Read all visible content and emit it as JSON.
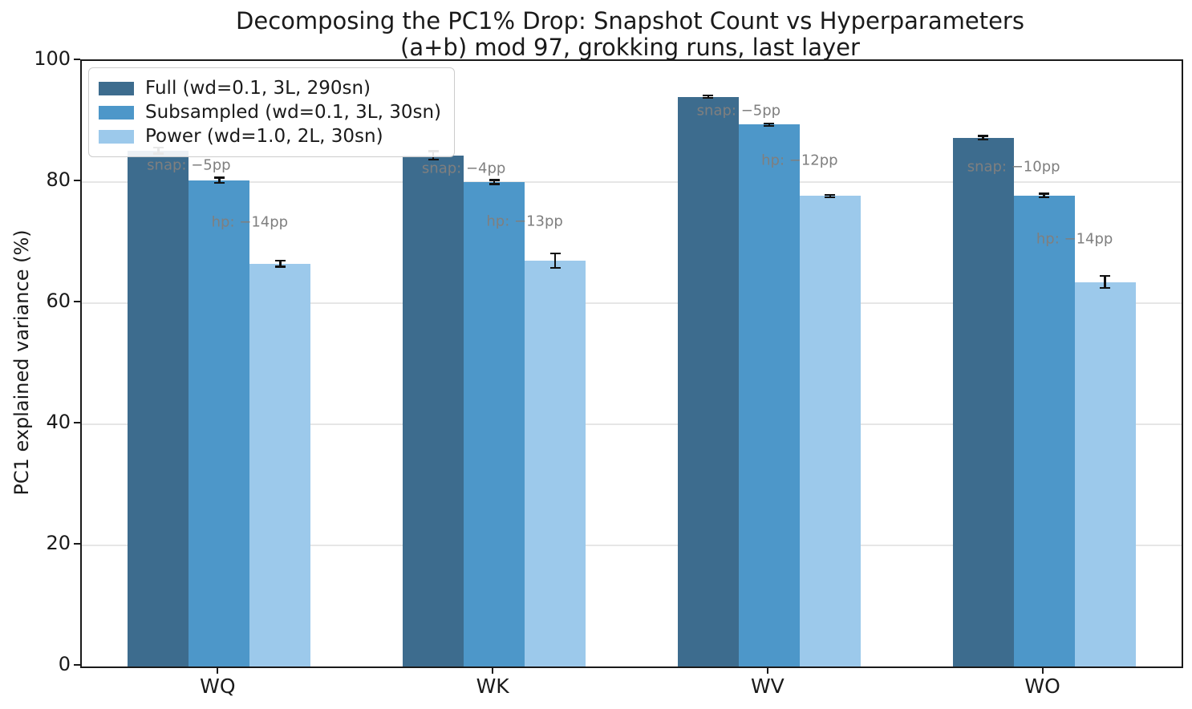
{
  "chart_data": {
    "type": "bar",
    "title": "Decomposing the PC1% Drop: Snapshot Count vs Hyperparameters",
    "subtitle": "(a+b) mod 97, grokking runs, last layer",
    "ylabel": "PC1 explained variance (%)",
    "xlabel": "",
    "ylim": [
      0,
      100
    ],
    "yticks": [
      0,
      20,
      40,
      60,
      80,
      100
    ],
    "grid": "horizontal",
    "legend_position": "upper left",
    "categories": [
      "WQ",
      "WK",
      "WV",
      "WO"
    ],
    "series": [
      {
        "name": "Full (wd=0.1, 3L, 290sn)",
        "color": "#3d6c8e",
        "values": [
          85.2,
          84.4,
          94.1,
          87.3
        ],
        "errors": [
          0.5,
          0.7,
          0.2,
          0.3
        ]
      },
      {
        "name": "Subsampled (wd=0.1, 3L, 30sn)",
        "color": "#4d97c9",
        "values": [
          80.3,
          80.0,
          89.5,
          77.8
        ],
        "errors": [
          0.4,
          0.3,
          0.2,
          0.3
        ]
      },
      {
        "name": "Power (wd=1.0, 2L, 30sn)",
        "color": "#9cc9eb",
        "values": [
          66.5,
          67.0,
          77.7,
          63.5
        ],
        "errors": [
          0.5,
          1.2,
          0.2,
          1.0
        ]
      }
    ],
    "annotations": [
      {
        "category": "WQ",
        "snap": "snap: −5pp",
        "hp": "hp: −14pp"
      },
      {
        "category": "WK",
        "snap": "snap: −4pp",
        "hp": "hp: −13pp"
      },
      {
        "category": "WV",
        "snap": "snap: −5pp",
        "hp": "hp: −12pp"
      },
      {
        "category": "WO",
        "snap": "snap: −10pp",
        "hp": "hp: −14pp"
      }
    ],
    "colors": {
      "annotation_text": "#7f7f7f",
      "errorbar": "#111111",
      "gridline": "#e6e6e6",
      "axis": "#1a1a1a"
    }
  }
}
